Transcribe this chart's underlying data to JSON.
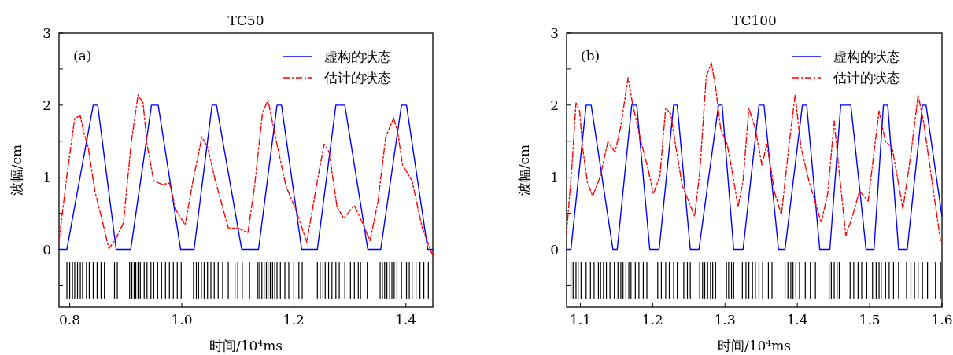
{
  "chart_data": [
    {
      "type": "line",
      "title": "TC50",
      "xlabel": "时间/10⁴ms",
      "ylabel": "波幅/cm",
      "annotations": [
        "(a)"
      ],
      "legend": "top right",
      "xlim": [
        0.781,
        1.448
      ],
      "ylim": [
        -0.8,
        3
      ],
      "xticks": [
        0.8,
        {
          "value": 1,
          "label": "1.0"
        },
        1.2,
        1.4
      ],
      "yticks": [
        {
          "value": -0.5,
          "label": null
        },
        0,
        {
          "value": 0.5,
          "label": null
        },
        1,
        {
          "value": 1.5,
          "label": null
        },
        2,
        {
          "value": 2.5,
          "label": null
        },
        3
      ],
      "series": [
        {
          "name": "虚构的状态",
          "color": "#0000ff",
          "line_style": "solid",
          "x": [
            0.781,
            0.795,
            0.842,
            0.85,
            0.883,
            0.909,
            0.946,
            0.958,
            0.998,
            1.022,
            1.054,
            1.062,
            1.107,
            1.137,
            1.17,
            1.178,
            1.214,
            1.242,
            1.275,
            1.291,
            1.332,
            1.355,
            1.392,
            1.401,
            1.439,
            1.448
          ],
          "values": [
            0,
            0,
            2,
            2,
            0,
            0,
            2,
            2,
            0,
            0,
            2,
            2,
            0,
            0,
            2,
            2,
            0,
            0,
            2,
            2,
            0,
            0,
            2,
            2,
            0,
            0
          ]
        },
        {
          "name": "估计的状态",
          "color": "#ff0000",
          "line_style": "dashdot",
          "x": [
            0.781,
            0.795,
            0.809,
            0.819,
            0.826,
            0.833,
            0.845,
            0.859,
            0.87,
            0.882,
            0.896,
            0.91,
            0.922,
            0.931,
            0.938,
            0.95,
            0.966,
            0.978,
            0.99,
            1.006,
            1.02,
            1.036,
            1.046,
            1.06,
            1.083,
            1.102,
            1.118,
            1.13,
            1.144,
            1.154,
            1.167,
            1.186,
            1.205,
            1.223,
            1.242,
            1.254,
            1.263,
            1.277,
            1.289,
            1.308,
            1.322,
            1.336,
            1.35,
            1.364,
            1.378,
            1.385,
            1.394,
            1.411,
            1.429,
            1.448
          ],
          "values": [
            0.12,
            1.02,
            1.82,
            1.85,
            1.6,
            1.42,
            0.81,
            0.37,
            0.01,
            0.14,
            0.37,
            1.49,
            2.14,
            2.03,
            1.46,
            0.95,
            0.9,
            0.92,
            0.54,
            0.34,
            0.95,
            1.56,
            1.42,
            0.95,
            0.3,
            0.29,
            0.23,
            0.88,
            1.89,
            2.07,
            1.56,
            0.88,
            0.52,
            0.1,
            0.95,
            1.46,
            1.35,
            0.59,
            0.43,
            0.61,
            0.37,
            0.12,
            0.66,
            1.56,
            1.82,
            1.64,
            1.17,
            0.95,
            0.3,
            -0.09
          ]
        },
        {
          "color": "#000000",
          "type": "bar",
          "x": [
            0.795,
            0.8,
            0.805,
            0.809,
            0.814,
            0.819,
            0.823,
            0.83,
            0.835,
            0.842,
            0.849,
            0.856,
            0.862,
            0.88,
            0.885,
            0.907,
            0.911,
            0.915,
            0.918,
            0.922,
            0.926,
            0.933,
            0.938,
            0.945,
            0.95,
            0.957,
            0.964,
            0.971,
            0.978,
            0.985,
            0.992,
            0.999,
            1.021,
            1.026,
            1.03,
            1.035,
            1.04,
            1.046,
            1.052,
            1.058,
            1.065,
            1.073,
            1.083,
            1.095,
            1.1,
            1.108,
            1.121,
            1.136,
            1.139,
            1.143,
            1.147,
            1.151,
            1.154,
            1.158,
            1.162,
            1.166,
            1.17,
            1.176,
            1.184,
            1.191,
            1.2,
            1.209,
            1.215,
            1.242,
            1.247,
            1.252,
            1.256,
            1.262,
            1.268,
            1.275,
            1.281,
            1.291,
            1.301,
            1.308,
            1.315,
            1.319,
            1.331,
            1.354,
            1.358,
            1.362,
            1.366,
            1.371,
            1.375,
            1.379,
            1.384,
            1.392,
            1.401,
            1.406,
            1.411,
            1.418,
            1.425,
            1.432,
            1.44
          ],
          "values": [
            0.51,
            0.51,
            0.51,
            0.51,
            0.51,
            0.51,
            0.51,
            0.51,
            0.51,
            0.51,
            0.51,
            0.51,
            0.51,
            0.51,
            0.51,
            0.51,
            0.51,
            0.51,
            0.51,
            0.51,
            0.51,
            0.51,
            0.51,
            0.51,
            0.51,
            0.51,
            0.51,
            0.51,
            0.51,
            0.51,
            0.51,
            0.51,
            0.51,
            0.51,
            0.51,
            0.51,
            0.51,
            0.51,
            0.51,
            0.51,
            0.51,
            0.51,
            0.51,
            0.51,
            0.51,
            0.51,
            0.51,
            0.51,
            0.51,
            0.51,
            0.51,
            0.51,
            0.51,
            0.51,
            0.51,
            0.51,
            0.51,
            0.51,
            0.51,
            0.51,
            0.51,
            0.51,
            0.51,
            0.51,
            0.51,
            0.51,
            0.51,
            0.51,
            0.51,
            0.51,
            0.51,
            0.51,
            0.51,
            0.51,
            0.51,
            0.51,
            0.51,
            0.51,
            0.51,
            0.51,
            0.51,
            0.51,
            0.51,
            0.51,
            0.51,
            0.51,
            0.51,
            0.51,
            0.51,
            0.51,
            0.51,
            0.51,
            0.51
          ],
          "base": [
            -0.69,
            -0.69,
            -0.69,
            -0.69,
            -0.69,
            -0.69,
            -0.69,
            -0.69,
            -0.69,
            -0.69,
            -0.69,
            -0.69,
            -0.69,
            -0.69,
            -0.69,
            -0.69,
            -0.69,
            -0.69,
            -0.69,
            -0.69,
            -0.69,
            -0.69,
            -0.69,
            -0.69,
            -0.69,
            -0.69,
            -0.69,
            -0.69,
            -0.69,
            -0.69,
            -0.69,
            -0.69,
            -0.69,
            -0.69,
            -0.69,
            -0.69,
            -0.69,
            -0.69,
            -0.69,
            -0.69,
            -0.69,
            -0.69,
            -0.69,
            -0.69,
            -0.69,
            -0.69,
            -0.69,
            -0.69,
            -0.69,
            -0.69,
            -0.69,
            -0.69,
            -0.69,
            -0.69,
            -0.69,
            -0.69,
            -0.69,
            -0.69,
            -0.69,
            -0.69,
            -0.69,
            -0.69,
            -0.69,
            -0.69,
            -0.69,
            -0.69,
            -0.69,
            -0.69,
            -0.69,
            -0.69,
            -0.69,
            -0.69,
            -0.69,
            -0.69,
            -0.69,
            -0.69,
            -0.69,
            -0.69,
            -0.69,
            -0.69,
            -0.69,
            -0.69,
            -0.69,
            -0.69,
            -0.69,
            -0.69,
            -0.69,
            -0.69,
            -0.69,
            -0.69,
            -0.69,
            -0.69,
            -0.69
          ]
        }
      ]
    },
    {
      "type": "line",
      "title": "TC100",
      "xlabel": "时间/10⁴ms",
      "ylabel": "波幅/cm",
      "annotations": [
        "(b)"
      ],
      "legend": "top right",
      "xlim": [
        1.081,
        1.6
      ],
      "ylim": [
        -0.8,
        3
      ],
      "xticks": [
        1.1,
        1.2,
        1.3,
        1.4,
        1.5,
        1.6
      ],
      "yticks": [
        {
          "value": -0.5,
          "label": null
        },
        0,
        {
          "value": 0.5,
          "label": null
        },
        1,
        {
          "value": 1.5,
          "label": null
        },
        2,
        {
          "value": 2.5,
          "label": null
        },
        3
      ],
      "series": [
        {
          "name": "虚构的状态",
          "color": "#0000ff",
          "line_style": "solid",
          "x": [
            1.081,
            1.087,
            1.108,
            1.115,
            1.145,
            1.151,
            1.171,
            1.178,
            1.196,
            1.209,
            1.229,
            1.234,
            1.252,
            1.264,
            1.291,
            1.296,
            1.312,
            1.325,
            1.347,
            1.354,
            1.374,
            1.383,
            1.407,
            1.413,
            1.431,
            1.445,
            1.46,
            1.474,
            1.495,
            1.506,
            1.519,
            1.525,
            1.54,
            1.552,
            1.573,
            1.578,
            1.6
          ],
          "values": [
            0,
            0,
            2,
            2,
            0,
            0,
            2,
            2,
            0,
            0,
            2,
            2,
            0,
            0,
            2,
            2,
            0,
            0,
            2,
            2,
            0,
            0,
            2,
            2,
            0,
            0,
            2,
            2,
            0,
            0,
            2,
            2,
            0,
            0,
            2,
            2,
            0.46
          ]
        },
        {
          "name": "估计的状态",
          "color": "#ff0000",
          "line_style": "dashdot",
          "x": [
            1.081,
            1.088,
            1.094,
            1.099,
            1.103,
            1.11,
            1.117,
            1.127,
            1.138,
            1.148,
            1.156,
            1.166,
            1.172,
            1.183,
            1.194,
            1.201,
            1.21,
            1.218,
            1.225,
            1.232,
            1.241,
            1.258,
            1.265,
            1.274,
            1.281,
            1.287,
            1.294,
            1.303,
            1.311,
            1.318,
            1.325,
            1.333,
            1.342,
            1.351,
            1.358,
            1.369,
            1.378,
            1.389,
            1.397,
            1.405,
            1.416,
            1.433,
            1.442,
            1.451,
            1.456,
            1.467,
            1.476,
            1.486,
            1.498,
            1.506,
            1.513,
            1.522,
            1.531,
            1.546,
            1.557,
            1.567,
            1.575,
            1.584,
            1.598
          ],
          "values": [
            0.23,
            1.1,
            2.03,
            1.92,
            1.42,
            0.92,
            0.74,
            0.99,
            1.49,
            1.35,
            1.71,
            2.38,
            2.03,
            1.53,
            1.1,
            0.77,
            1.02,
            1.96,
            1.88,
            1.42,
            0.88,
            0.46,
            1.06,
            2.39,
            2.59,
            2.25,
            1.67,
            1.46,
            1.02,
            0.59,
            0.95,
            1.96,
            1.67,
            1.17,
            1.46,
            0.77,
            0.48,
            1.49,
            2.14,
            1.42,
            0.95,
            0.37,
            0.77,
            1.78,
            1.26,
            0.19,
            0.45,
            0.81,
            0.67,
            1.35,
            1.92,
            1.49,
            1.42,
            0.56,
            1.32,
            2.14,
            1.74,
            1.1,
            0.12
          ]
        },
        {
          "color": "#000000",
          "type": "bar",
          "x": [
            1.087,
            1.09,
            1.094,
            1.097,
            1.101,
            1.108,
            1.114,
            1.119,
            1.125,
            1.128,
            1.132,
            1.136,
            1.141,
            1.147,
            1.152,
            1.156,
            1.159,
            1.163,
            1.167,
            1.17,
            1.176,
            1.181,
            1.187,
            1.192,
            1.207,
            1.212,
            1.218,
            1.223,
            1.229,
            1.234,
            1.243,
            1.248,
            1.252,
            1.265,
            1.269,
            1.272,
            1.276,
            1.28,
            1.283,
            1.287,
            1.302,
            1.305,
            1.309,
            1.312,
            1.324,
            1.329,
            1.333,
            1.338,
            1.342,
            1.347,
            1.352,
            1.36,
            1.365,
            1.383,
            1.387,
            1.391,
            1.394,
            1.398,
            1.403,
            1.411,
            1.418,
            1.425,
            1.444,
            1.447,
            1.451,
            1.455,
            1.458,
            1.473,
            1.478,
            1.484,
            1.489,
            1.496,
            1.504,
            1.509,
            1.513,
            1.516,
            1.522,
            1.527,
            1.533,
            1.54,
            1.551,
            1.557,
            1.562,
            1.567,
            1.573,
            1.58,
            1.591,
            1.598
          ],
          "values": [
            0.51,
            0.51,
            0.51,
            0.51,
            0.51,
            0.51,
            0.51,
            0.51,
            0.51,
            0.51,
            0.51,
            0.51,
            0.51,
            0.51,
            0.51,
            0.51,
            0.51,
            0.51,
            0.51,
            0.51,
            0.51,
            0.51,
            0.51,
            0.51,
            0.51,
            0.51,
            0.51,
            0.51,
            0.51,
            0.51,
            0.51,
            0.51,
            0.51,
            0.51,
            0.51,
            0.51,
            0.51,
            0.51,
            0.51,
            0.51,
            0.51,
            0.51,
            0.51,
            0.51,
            0.51,
            0.51,
            0.51,
            0.51,
            0.51,
            0.51,
            0.51,
            0.51,
            0.51,
            0.51,
            0.51,
            0.51,
            0.51,
            0.51,
            0.51,
            0.51,
            0.51,
            0.51,
            0.51,
            0.51,
            0.51,
            0.51,
            0.51,
            0.51,
            0.51,
            0.51,
            0.51,
            0.51,
            0.51,
            0.51,
            0.51,
            0.51,
            0.51,
            0.51,
            0.51,
            0.51,
            0.51,
            0.51,
            0.51,
            0.51,
            0.51,
            0.51,
            0.51,
            0.51
          ],
          "base": [
            -0.69,
            -0.69,
            -0.69,
            -0.69,
            -0.69,
            -0.69,
            -0.69,
            -0.69,
            -0.69,
            -0.69,
            -0.69,
            -0.69,
            -0.69,
            -0.69,
            -0.69,
            -0.69,
            -0.69,
            -0.69,
            -0.69,
            -0.69,
            -0.69,
            -0.69,
            -0.69,
            -0.69,
            -0.69,
            -0.69,
            -0.69,
            -0.69,
            -0.69,
            -0.69,
            -0.69,
            -0.69,
            -0.69,
            -0.69,
            -0.69,
            -0.69,
            -0.69,
            -0.69,
            -0.69,
            -0.69,
            -0.69,
            -0.69,
            -0.69,
            -0.69,
            -0.69,
            -0.69,
            -0.69,
            -0.69,
            -0.69,
            -0.69,
            -0.69,
            -0.69,
            -0.69,
            -0.69,
            -0.69,
            -0.69,
            -0.69,
            -0.69,
            -0.69,
            -0.69,
            -0.69,
            -0.69,
            -0.69,
            -0.69,
            -0.69,
            -0.69,
            -0.69,
            -0.69,
            -0.69,
            -0.69,
            -0.69,
            -0.69,
            -0.69,
            -0.69,
            -0.69,
            -0.69,
            -0.69,
            -0.69,
            -0.69,
            -0.69,
            -0.69,
            -0.69,
            -0.69,
            -0.69,
            -0.69,
            -0.69,
            -0.69,
            -0.69
          ]
        }
      ]
    }
  ]
}
